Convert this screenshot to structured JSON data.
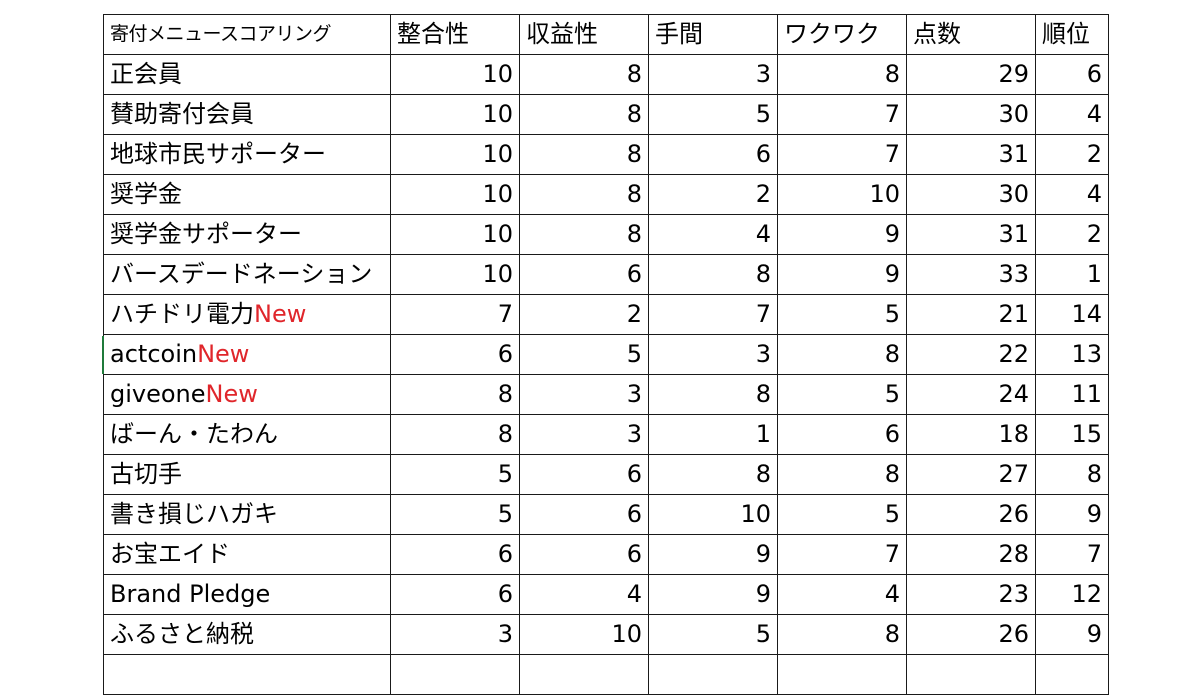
{
  "table": {
    "columns": [
      "寄付メニュースコアリング",
      "整合性",
      "収益性",
      "手間",
      "ワクワク",
      "点数",
      "順位"
    ],
    "new_tag": "New",
    "new_tag_color": "#e0262b",
    "rows": [
      {
        "name": "正会員",
        "is_new": false,
        "values": [
          "10",
          "8",
          "3",
          "8",
          "29",
          "6"
        ]
      },
      {
        "name": "賛助寄付会員",
        "is_new": false,
        "values": [
          "10",
          "8",
          "5",
          "7",
          "30",
          "4"
        ]
      },
      {
        "name": "地球市民サポーター",
        "is_new": false,
        "values": [
          "10",
          "8",
          "6",
          "7",
          "31",
          "2"
        ]
      },
      {
        "name": "奨学金",
        "is_new": false,
        "values": [
          "10",
          "8",
          "2",
          "10",
          "30",
          "4"
        ]
      },
      {
        "name": "奨学金サポーター",
        "is_new": false,
        "values": [
          "10",
          "8",
          "4",
          "9",
          "31",
          "2"
        ]
      },
      {
        "name": "バースデードネーション",
        "is_new": false,
        "values": [
          "10",
          "6",
          "8",
          "9",
          "33",
          "1"
        ]
      },
      {
        "name": "ハチドリ電力",
        "is_new": true,
        "values": [
          "7",
          "2",
          "7",
          "5",
          "21",
          "14"
        ]
      },
      {
        "name": "actcoin",
        "is_new": true,
        "values": [
          "6",
          "5",
          "3",
          "8",
          "22",
          "13"
        ]
      },
      {
        "name": "giveone",
        "is_new": true,
        "values": [
          "8",
          "3",
          "8",
          "5",
          "24",
          "11"
        ]
      },
      {
        "name": "ばーん・たわん",
        "is_new": false,
        "values": [
          "8",
          "3",
          "1",
          "6",
          "18",
          "15"
        ]
      },
      {
        "name": "古切手",
        "is_new": false,
        "values": [
          "5",
          "6",
          "8",
          "8",
          "27",
          "8"
        ]
      },
      {
        "name": "書き損じハガキ",
        "is_new": false,
        "values": [
          "5",
          "6",
          "10",
          "5",
          "26",
          "9"
        ]
      },
      {
        "name": "お宝エイド",
        "is_new": false,
        "values": [
          "6",
          "6",
          "9",
          "7",
          "28",
          "7"
        ]
      },
      {
        "name": "Brand Pledge",
        "is_new": false,
        "values": [
          "6",
          "4",
          "9",
          "4",
          "23",
          "12"
        ]
      },
      {
        "name": "ふるさと納税",
        "is_new": false,
        "values": [
          "3",
          "10",
          "5",
          "8",
          "26",
          "9"
        ]
      }
    ]
  }
}
